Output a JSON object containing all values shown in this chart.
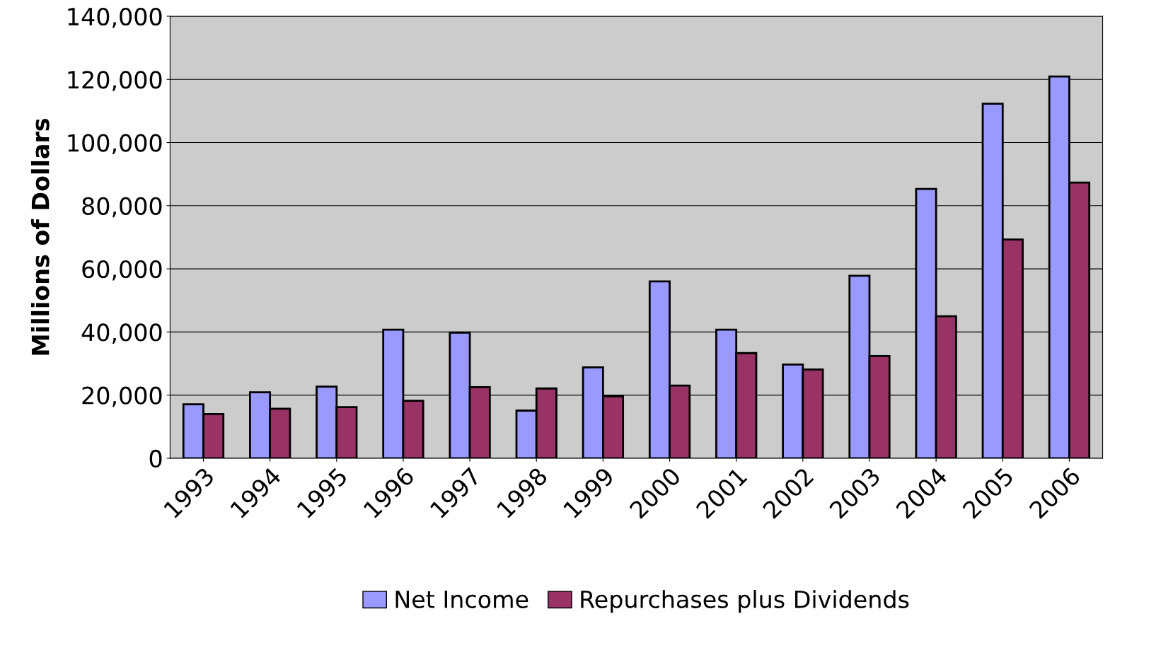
{
  "chart_data": {
    "type": "bar",
    "ylabel": "Millions of Dollars",
    "categories": [
      "1993",
      "1994",
      "1995",
      "1996",
      "1997",
      "1998",
      "1999",
      "2000",
      "2001",
      "2002",
      "2003",
      "2004",
      "2005",
      "2006"
    ],
    "series": [
      {
        "name": "Net Income",
        "color": "#9999ff",
        "values": [
          17100,
          20900,
          22700,
          40700,
          39800,
          15100,
          28800,
          56000,
          40700,
          29700,
          57800,
          85300,
          112300,
          120900
        ]
      },
      {
        "name": "Repurchases plus Dividends",
        "color": "#993366",
        "values": [
          14000,
          15700,
          16200,
          18200,
          22500,
          22100,
          19600,
          23000,
          33300,
          28100,
          32400,
          45000,
          69300,
          87300
        ]
      }
    ],
    "ylim": [
      0,
      140000
    ],
    "yticks": [
      {
        "value": 0,
        "label": "0"
      },
      {
        "value": 20000,
        "label": "20,000"
      },
      {
        "value": 40000,
        "label": "40,000"
      },
      {
        "value": 60000,
        "label": "60,000"
      },
      {
        "value": 80000,
        "label": "80,000"
      },
      {
        "value": 100000,
        "label": "100,000"
      },
      {
        "value": 120000,
        "label": "120,000"
      },
      {
        "value": 140000,
        "label": "140,000"
      }
    ],
    "grid": "y",
    "legend": "bottom"
  }
}
